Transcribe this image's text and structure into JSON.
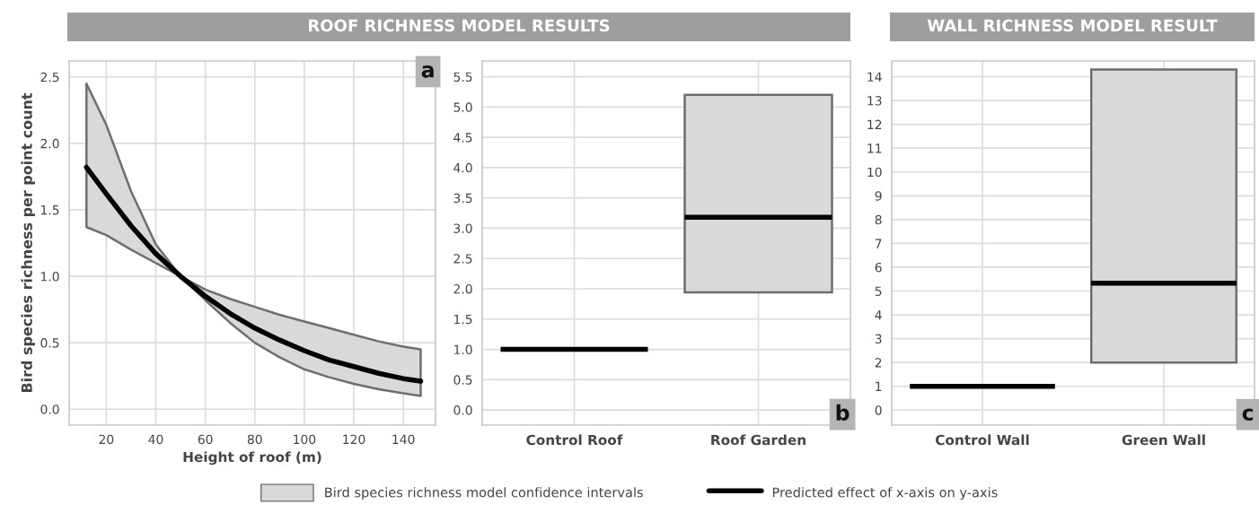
{
  "chart_data": [
    {
      "type": "line",
      "title": "ROOF RICHNESS MODEL RESULTS",
      "xlabel": "Height of roof (m)",
      "ylabel": "Bird species richness per point count",
      "x": [
        12,
        20,
        30,
        40,
        50,
        60,
        70,
        80,
        90,
        100,
        110,
        120,
        130,
        140,
        147
      ],
      "series": [
        {
          "name": "Predicted effect of x-axis on y-axis",
          "type": "line",
          "color": "#000000",
          "values": [
            1.82,
            1.62,
            1.38,
            1.17,
            1.0,
            0.85,
            0.72,
            0.61,
            0.52,
            0.44,
            0.37,
            0.32,
            0.27,
            0.23,
            0.21
          ],
          "lower": [
            1.37,
            1.31,
            1.2,
            1.1,
            1.0,
            0.82,
            0.65,
            0.5,
            0.39,
            0.3,
            0.24,
            0.19,
            0.15,
            0.12,
            0.1
          ],
          "upper": [
            2.45,
            2.14,
            1.64,
            1.24,
            1.0,
            0.9,
            0.83,
            0.77,
            0.71,
            0.66,
            0.61,
            0.56,
            0.51,
            0.47,
            0.45
          ]
        }
      ],
      "xlim": [
        5,
        153
      ],
      "xticks": [
        20,
        40,
        60,
        80,
        100,
        120,
        140
      ],
      "ylim": [
        -0.12,
        2.62
      ],
      "yticks": [
        {
          "value": 0,
          "label": "0.0"
        },
        0.5,
        {
          "value": 1,
          "label": "1.0"
        },
        1.5,
        {
          "value": 2,
          "label": "2.0"
        },
        2.5
      ],
      "grid": true,
      "legend": "bottom",
      "annotations": [
        "a",
        "Bird species richness model confidence intervals"
      ]
    },
    {
      "type": "box",
      "categories": [
        "Control Roof",
        "Roof Garden"
      ],
      "series": [
        {
          "colors": [
            "#000000",
            "#d9d9d9"
          ],
          "boxes": [
            {
              "q1": 1.0,
              "median": 1.0,
              "q3": 1.0
            },
            {
              "q1": 1.94,
              "median": 3.18,
              "q3": 5.2
            }
          ]
        }
      ],
      "ylim": [
        -0.25,
        5.76
      ],
      "yticks": [
        {
          "value": 0,
          "label": "0.0"
        },
        0.5,
        {
          "value": 1,
          "label": "1.0"
        },
        1.5,
        {
          "value": 2,
          "label": "2.0"
        },
        2.5,
        {
          "value": 3,
          "label": "3.0"
        },
        3.5,
        {
          "value": 4,
          "label": "4.0"
        },
        4.5,
        {
          "value": 5,
          "label": "5.0"
        },
        5.5
      ],
      "grid": true,
      "annotations": [
        "b"
      ]
    },
    {
      "type": "box",
      "title": "WALL RICHNESS MODEL RESULT",
      "categories": [
        "Control Wall",
        "Green Wall"
      ],
      "series": [
        {
          "colors": [
            "#000000",
            "#d9d9d9"
          ],
          "boxes": [
            {
              "q1": 1,
              "median": 1,
              "q3": 1
            },
            {
              "q1": 2.0,
              "median": 5.33,
              "q3": 14.3
            }
          ]
        }
      ],
      "ylim": [
        -0.63,
        14.66
      ],
      "yticks": [
        0,
        1,
        2,
        3,
        4,
        5,
        6,
        7,
        8,
        9,
        10,
        11,
        12,
        13,
        14
      ],
      "grid": true,
      "annotations": [
        "c"
      ]
    }
  ]
}
